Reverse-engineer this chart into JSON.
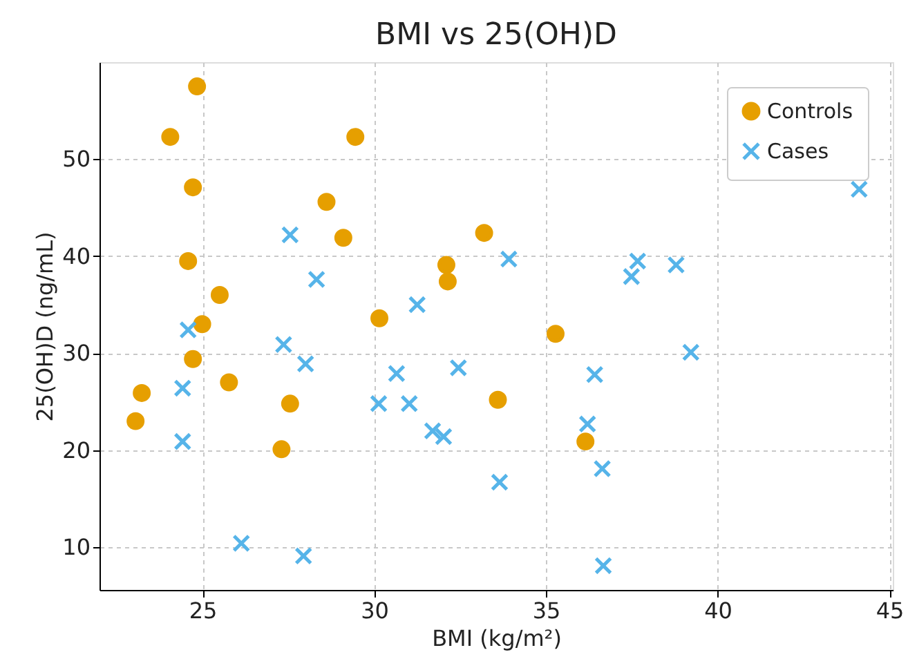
{
  "chart_data": {
    "type": "scatter",
    "title": "BMI vs 25(OH)D",
    "xlabel": "BMI (kg/m²)",
    "ylabel": "25(OH)D (ng/mL)",
    "xlim": [
      22,
      45.1
    ],
    "ylim": [
      5.6,
      60
    ],
    "xticks": [
      25,
      30,
      35,
      40,
      45
    ],
    "yticks": [
      10,
      20,
      30,
      40,
      50
    ],
    "grid": true,
    "legend": "top right",
    "series": [
      {
        "name": "Controls",
        "color": "#e69f00",
        "marker": "circle",
        "x": [
          24.84,
          24.06,
          29.45,
          24.72,
          28.61,
          24.58,
          29.1,
          33.2,
          32.1,
          32.14,
          25.5,
          24.99,
          30.15,
          35.28,
          24.72,
          25.77,
          23.23,
          27.55,
          33.6,
          23.05,
          27.3,
          36.15
        ],
        "values": [
          57.5,
          52.3,
          52.3,
          47.1,
          45.6,
          39.5,
          41.9,
          42.4,
          39.1,
          37.4,
          36.0,
          33.0,
          33.6,
          32.0,
          29.4,
          27.0,
          25.9,
          24.8,
          25.2,
          23.0,
          20.1,
          20.9
        ]
      },
      {
        "name": "Cases",
        "color": "#56b4e9",
        "marker": "cross",
        "x": [
          27.55,
          28.32,
          31.25,
          24.58,
          27.36,
          28.0,
          30.65,
          32.45,
          24.42,
          30.13,
          31.02,
          31.7,
          32.02,
          24.42,
          33.65,
          26.13,
          27.94,
          33.92,
          44.12,
          37.67,
          37.49,
          38.79,
          39.22,
          36.42,
          36.21,
          36.64,
          36.67
        ],
        "values": [
          42.2,
          37.6,
          35.0,
          32.4,
          30.9,
          28.9,
          27.9,
          28.5,
          26.4,
          24.8,
          24.8,
          22.0,
          21.4,
          20.9,
          16.7,
          10.4,
          9.1,
          39.7,
          46.9,
          39.5,
          37.9,
          39.1,
          30.1,
          27.8,
          22.7,
          18.1,
          8.1
        ]
      }
    ]
  }
}
